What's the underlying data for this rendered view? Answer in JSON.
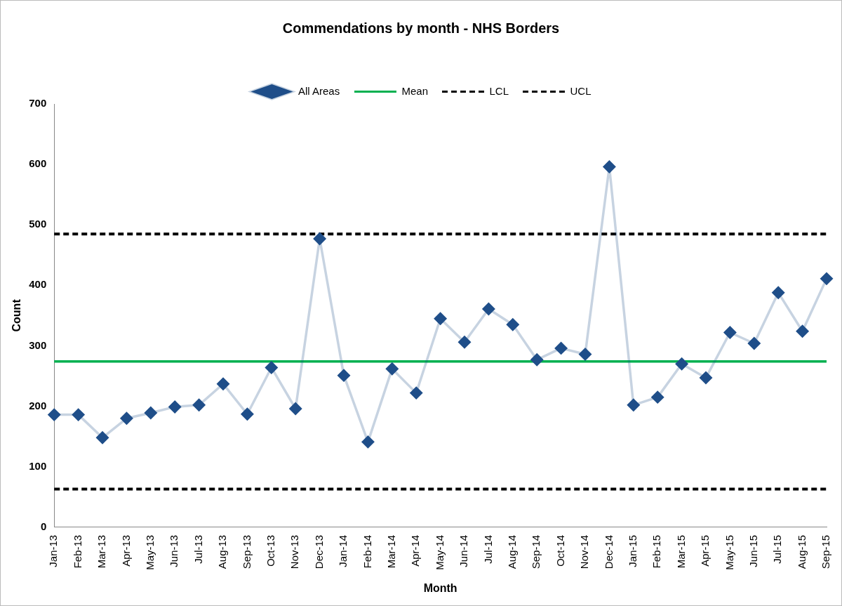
{
  "chart_data": {
    "type": "line",
    "title": "Commendations by month - NHS Borders",
    "xlabel": "Month",
    "ylabel": "Count",
    "categories": [
      "Jan-13",
      "Feb-13",
      "Mar-13",
      "Apr-13",
      "May-13",
      "Jun-13",
      "Jul-13",
      "Aug-13",
      "Sep-13",
      "Oct-13",
      "Nov-13",
      "Dec-13",
      "Jan-14",
      "Feb-14",
      "Mar-14",
      "Apr-14",
      "May-14",
      "Jun-14",
      "Jul-14",
      "Aug-14",
      "Sep-14",
      "Oct-14",
      "Nov-14",
      "Dec-14",
      "Jan-15",
      "Feb-15",
      "Mar-15",
      "Apr-15",
      "May-15",
      "Jun-15",
      "Jul-15",
      "Aug-15",
      "Sep-15"
    ],
    "series": [
      {
        "name": "All Areas",
        "color": "#1f4e89",
        "marker": "diamond",
        "values": [
          186,
          186,
          148,
          180,
          189,
          199,
          202,
          237,
          187,
          264,
          196,
          477,
          251,
          141,
          262,
          222,
          345,
          306,
          361,
          335,
          277,
          296,
          286,
          596,
          202,
          215,
          270,
          247,
          322,
          304,
          388,
          324,
          411
        ]
      },
      {
        "name": "Mean",
        "color": "#00b050",
        "marker": "none",
        "values": [
          274,
          274,
          274,
          274,
          274,
          274,
          274,
          274,
          274,
          274,
          274,
          274,
          274,
          274,
          274,
          274,
          274,
          274,
          274,
          274,
          274,
          274,
          274,
          274,
          274,
          274,
          274,
          274,
          274,
          274,
          274,
          274,
          274
        ]
      },
      {
        "name": "LCL",
        "color": "#000000",
        "marker": "none",
        "line_style": "dashed",
        "values": [
          63,
          63,
          63,
          63,
          63,
          63,
          63,
          63,
          63,
          63,
          63,
          63,
          63,
          63,
          63,
          63,
          63,
          63,
          63,
          63,
          63,
          63,
          63,
          63,
          63,
          63,
          63,
          63,
          63,
          63,
          63,
          63,
          63
        ]
      },
      {
        "name": "UCL",
        "color": "#000000",
        "marker": "none",
        "line_style": "dashed",
        "values": [
          485,
          485,
          485,
          485,
          485,
          485,
          485,
          485,
          485,
          485,
          485,
          485,
          485,
          485,
          485,
          485,
          485,
          485,
          485,
          485,
          485,
          485,
          485,
          485,
          485,
          485,
          485,
          485,
          485,
          485,
          485,
          485,
          485
        ]
      }
    ],
    "ylim": [
      0,
      700
    ],
    "yticks": [
      0,
      100,
      200,
      300,
      400,
      500,
      600,
      700
    ],
    "grid": false,
    "legend": "top"
  }
}
